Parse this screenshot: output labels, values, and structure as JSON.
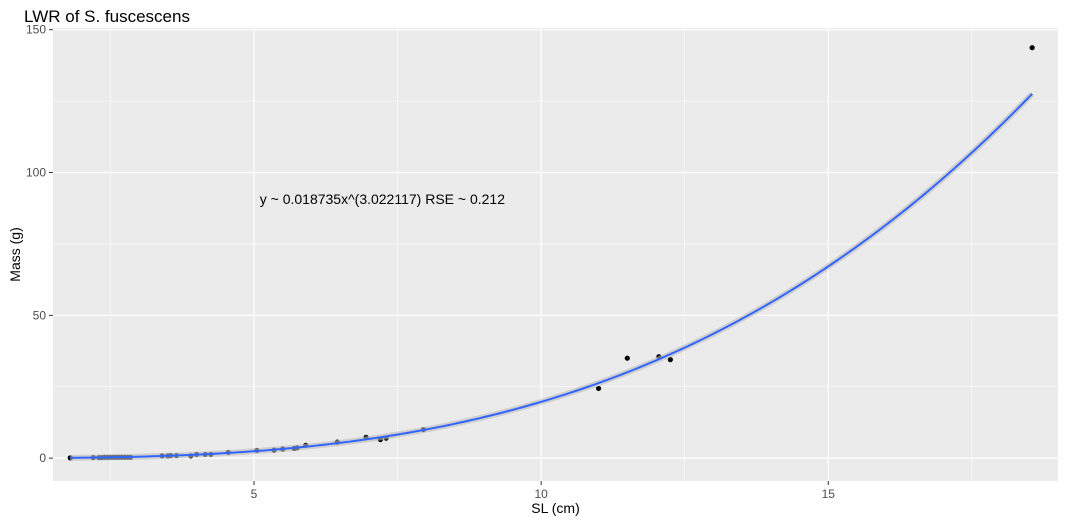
{
  "chart_data": {
    "type": "scatter",
    "title": "LWR of S. fuscescens",
    "xlabel": "SL (cm)",
    "ylabel": "Mass (g)",
    "xlim": [
      1.5,
      19.0
    ],
    "ylim": [
      -8.0,
      150.6
    ],
    "x_ticks": [
      5,
      10,
      15
    ],
    "y_ticks": [
      0,
      50,
      100,
      150
    ],
    "grid": true,
    "legend": "none",
    "annotation": {
      "text": "y ~ 0.018735x^(3.022117)  RSE ~ 0.212",
      "x": 5.1,
      "y": 89
    },
    "fit": {
      "a": 0.018735,
      "b": 3.022117,
      "x_range": [
        1.8,
        18.55
      ],
      "color": "#3366ff"
    },
    "series": [
      {
        "color": "#000000",
        "points": [
          [
            1.8,
            0.1
          ],
          [
            2.2,
            0.2
          ],
          [
            2.3,
            0.2
          ],
          [
            2.35,
            0.2
          ],
          [
            2.4,
            0.3
          ],
          [
            2.45,
            0.3
          ],
          [
            2.5,
            0.3
          ],
          [
            2.55,
            0.3
          ],
          [
            2.6,
            0.3
          ],
          [
            2.65,
            0.3
          ],
          [
            2.7,
            0.3
          ],
          [
            2.75,
            0.3
          ],
          [
            2.8,
            0.3
          ],
          [
            2.85,
            0.3
          ],
          [
            3.4,
            0.8
          ],
          [
            3.5,
            0.8
          ],
          [
            3.55,
            0.9
          ],
          [
            3.65,
            0.9
          ],
          [
            3.9,
            0.8
          ],
          [
            4.0,
            1.3
          ],
          [
            4.15,
            1.3
          ],
          [
            4.25,
            1.3
          ],
          [
            4.55,
            2.0
          ],
          [
            5.05,
            2.7
          ],
          [
            5.35,
            2.8
          ],
          [
            5.5,
            3.2
          ],
          [
            5.7,
            3.4
          ],
          [
            5.75,
            3.6
          ],
          [
            5.9,
            4.5
          ],
          [
            6.45,
            5.6
          ],
          [
            6.95,
            7.3
          ],
          [
            7.2,
            6.5
          ],
          [
            7.3,
            7.0
          ],
          [
            7.95,
            10.0
          ],
          [
            11.0,
            24.4
          ],
          [
            11.5,
            35.0
          ],
          [
            12.05,
            35.5
          ],
          [
            12.25,
            34.5
          ],
          [
            18.55,
            143.7
          ]
        ]
      }
    ]
  }
}
